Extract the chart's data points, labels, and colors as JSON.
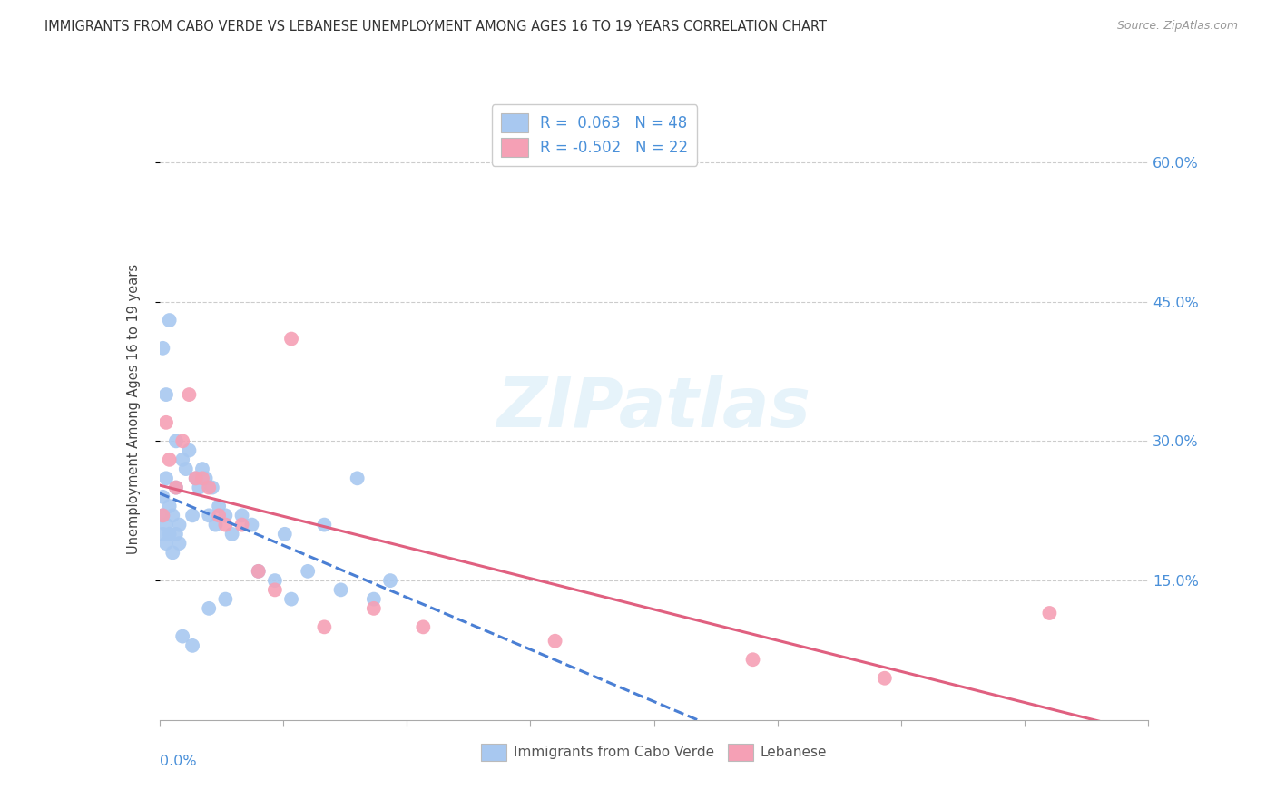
{
  "title": "IMMIGRANTS FROM CABO VERDE VS LEBANESE UNEMPLOYMENT AMONG AGES 16 TO 19 YEARS CORRELATION CHART",
  "source": "Source: ZipAtlas.com",
  "ylabel": "Unemployment Among Ages 16 to 19 years",
  "ytick_vals": [
    0.15,
    0.3,
    0.45,
    0.6
  ],
  "ytick_labels": [
    "15.0%",
    "30.0%",
    "45.0%",
    "60.0%"
  ],
  "xlim": [
    0.0,
    0.3
  ],
  "ylim": [
    0.0,
    0.67
  ],
  "legend1_r": "0.063",
  "legend1_n": "48",
  "legend2_r": "-0.502",
  "legend2_n": "22",
  "cabo_verde_color": "#a8c8f0",
  "lebanese_color": "#f5a0b5",
  "cabo_verde_line_color": "#4a7fd4",
  "lebanese_line_color": "#e06080",
  "cabo_verde_x": [
    0.001,
    0.001,
    0.001,
    0.002,
    0.002,
    0.002,
    0.003,
    0.003,
    0.004,
    0.004,
    0.005,
    0.005,
    0.006,
    0.006,
    0.007,
    0.008,
    0.009,
    0.01,
    0.011,
    0.012,
    0.013,
    0.014,
    0.015,
    0.016,
    0.017,
    0.018,
    0.02,
    0.022,
    0.025,
    0.028,
    0.03,
    0.035,
    0.038,
    0.04,
    0.045,
    0.05,
    0.055,
    0.06,
    0.065,
    0.07,
    0.001,
    0.002,
    0.003,
    0.005,
    0.007,
    0.01,
    0.015,
    0.02
  ],
  "cabo_verde_y": [
    0.2,
    0.22,
    0.24,
    0.19,
    0.21,
    0.26,
    0.2,
    0.23,
    0.22,
    0.18,
    0.25,
    0.2,
    0.19,
    0.21,
    0.28,
    0.27,
    0.29,
    0.22,
    0.26,
    0.25,
    0.27,
    0.26,
    0.22,
    0.25,
    0.21,
    0.23,
    0.22,
    0.2,
    0.22,
    0.21,
    0.16,
    0.15,
    0.2,
    0.13,
    0.16,
    0.21,
    0.14,
    0.26,
    0.13,
    0.15,
    0.4,
    0.35,
    0.43,
    0.3,
    0.09,
    0.08,
    0.12,
    0.13
  ],
  "lebanese_x": [
    0.001,
    0.002,
    0.003,
    0.005,
    0.007,
    0.009,
    0.011,
    0.013,
    0.015,
    0.018,
    0.02,
    0.025,
    0.03,
    0.035,
    0.04,
    0.05,
    0.065,
    0.08,
    0.12,
    0.18,
    0.22,
    0.27
  ],
  "lebanese_y": [
    0.22,
    0.32,
    0.28,
    0.25,
    0.3,
    0.35,
    0.26,
    0.26,
    0.25,
    0.22,
    0.21,
    0.21,
    0.16,
    0.14,
    0.41,
    0.1,
    0.12,
    0.1,
    0.085,
    0.065,
    0.045,
    0.115
  ]
}
